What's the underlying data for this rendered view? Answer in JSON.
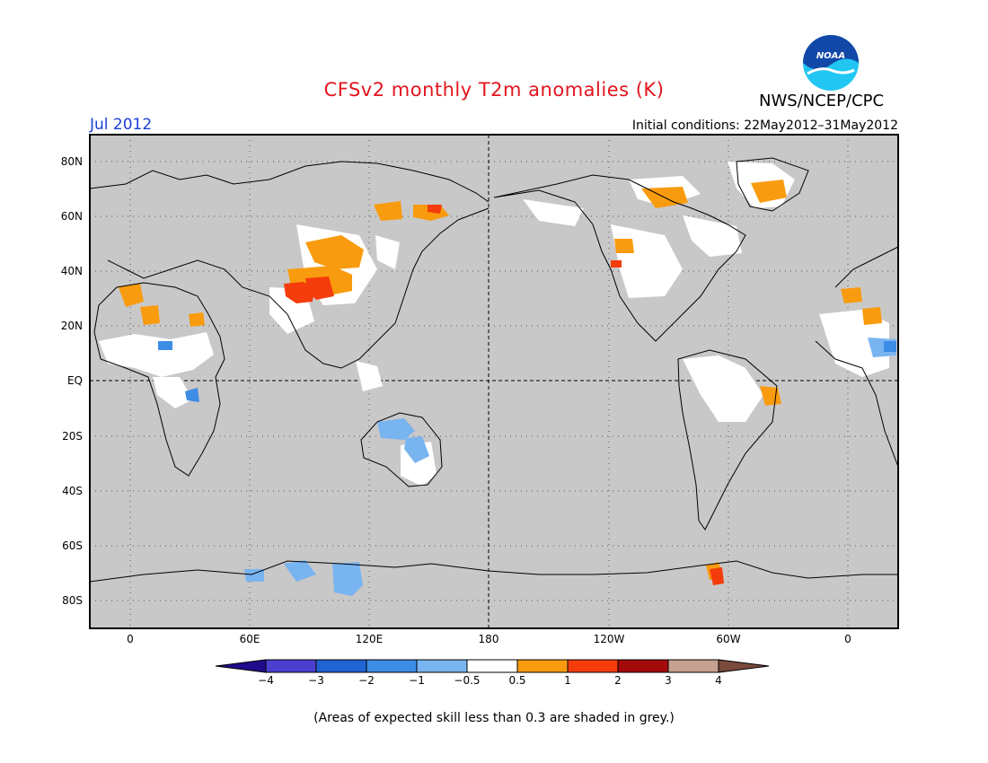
{
  "header": {
    "title": "CFSv2 monthly T2m anomalies (K)",
    "organization": "NWS/NCEP/CPC",
    "logo_text": "NOAA",
    "month": "Jul 2012",
    "initial_conditions": "Initial conditions: 22May2012–31May2012"
  },
  "map": {
    "latitude_labels": [
      "80N",
      "60N",
      "40N",
      "20N",
      "EQ",
      "20S",
      "40S",
      "60S",
      "80S"
    ],
    "longitude_labels": [
      "0",
      "60E",
      "120E",
      "180",
      "120W",
      "60W",
      "0"
    ],
    "background_color": "#c8c8c8",
    "land_outline_color": "#000000"
  },
  "colorbar": {
    "labels": [
      "−4",
      "−3",
      "−2",
      "−1",
      "−0.5",
      "0.5",
      "1",
      "2",
      "3",
      "4"
    ],
    "colors": [
      "#220a8c",
      "#4b3fcf",
      "#1f64d2",
      "#3d8ce6",
      "#78b4f0",
      "#ffffff",
      "#f99b0e",
      "#f43c0c",
      "#a50a0a",
      "#c7a090",
      "#7a4a3a"
    ]
  },
  "footnote": "(Areas of expected skill less than 0.3 are shaded in grey.)",
  "colors": {
    "title": "#e3141d",
    "month": "#1a3fd8",
    "noaa_blue": "#1248a8",
    "noaa_cyan": "#21c7f2"
  }
}
